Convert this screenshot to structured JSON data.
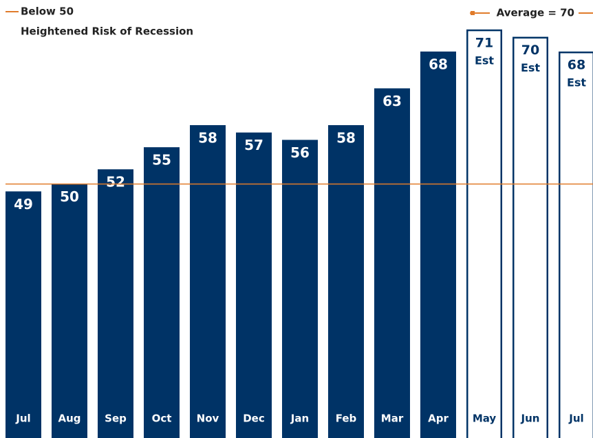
{
  "chart_data": {
    "type": "bar",
    "title": "Below 50",
    "subtitle": "Heightened Risk of Recession",
    "legend": "Average = 70",
    "categories": [
      "Jul",
      "Aug",
      "Sep",
      "Oct",
      "Nov",
      "Dec",
      "Jan",
      "Feb",
      "Mar",
      "Apr",
      "May",
      "Jun",
      "Jul"
    ],
    "values": [
      49,
      50,
      52,
      55,
      58,
      57,
      56,
      58,
      63,
      68,
      71,
      70,
      68
    ],
    "estimated": [
      false,
      false,
      false,
      false,
      false,
      false,
      false,
      false,
      false,
      false,
      true,
      true,
      true
    ],
    "estimate_label": "Est",
    "color": "#003366",
    "estimate_fill": "#ffffff",
    "reference_line": {
      "value": 50,
      "color": "#e07b2a"
    },
    "ylim": [
      15.5,
      75
    ]
  }
}
